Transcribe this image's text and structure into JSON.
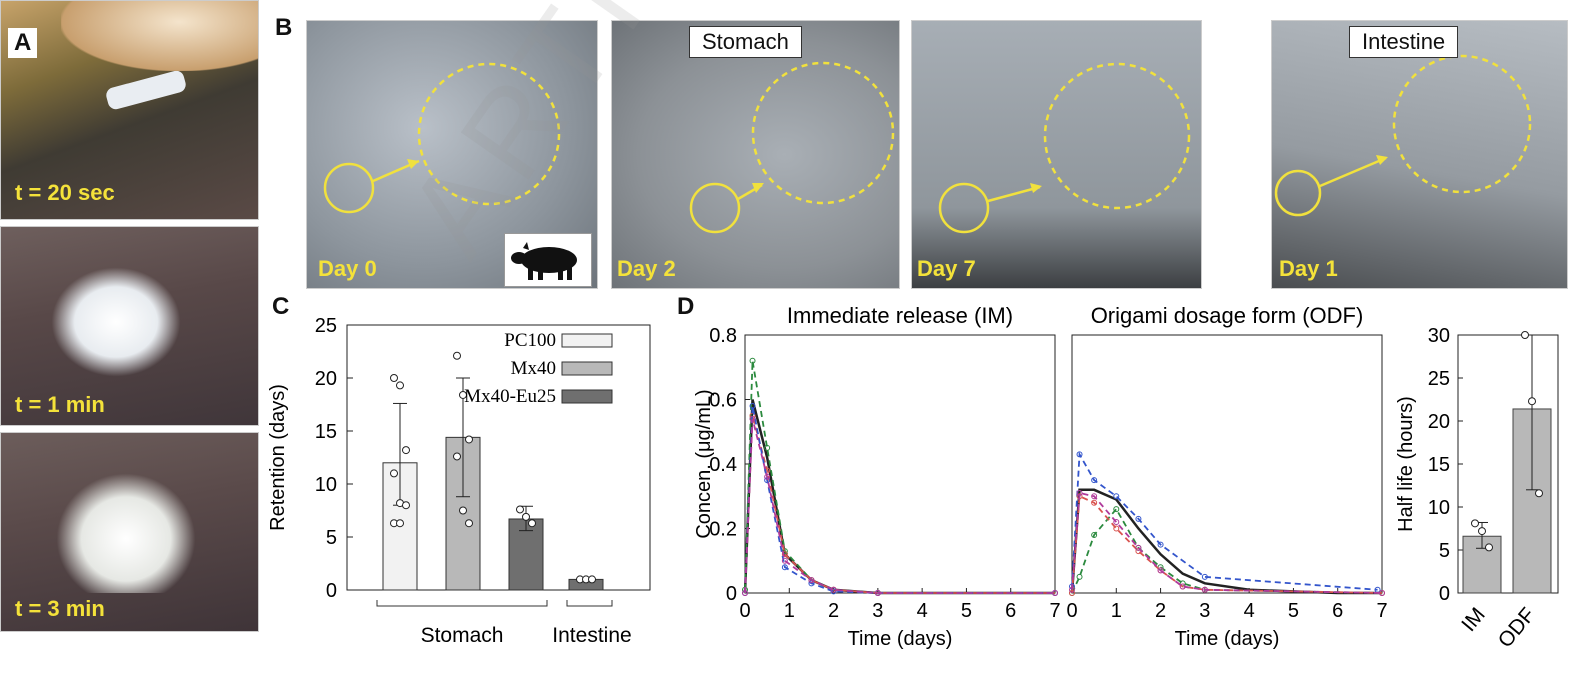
{
  "panelA": {
    "letter": "A",
    "frames": [
      {
        "label": "t = 20 sec"
      },
      {
        "label": "t = 1 min"
      },
      {
        "label": "t = 3 min"
      }
    ]
  },
  "panelB": {
    "letter": "B",
    "images": [
      {
        "day": "Day 0",
        "tag": ""
      },
      {
        "day": "Day 2",
        "tag": "Stomach"
      },
      {
        "day": "Day 7",
        "tag": ""
      },
      {
        "day": "Day 1",
        "tag": "Intestine"
      }
    ],
    "animal_icon": "pig-icon"
  },
  "panelC": {
    "letter": "C",
    "chart_data": {
      "type": "bar",
      "ylabel": "Retention (days)",
      "ylim": [
        0,
        25
      ],
      "yticks": [
        0,
        5,
        10,
        15,
        20,
        25
      ],
      "legend": [
        "PC100",
        "Mx40",
        "Mx40-Eu25"
      ],
      "legend_position": "top-right",
      "groups": [
        "Stomach",
        "Intestine"
      ],
      "bars": [
        {
          "series": "PC100",
          "group": "Stomach",
          "value": 12,
          "err_low": 8,
          "err_high": 17.6,
          "points": [
            20,
            19.3,
            13.2,
            11,
            8.2,
            8,
            6.3,
            6.3
          ]
        },
        {
          "series": "Mx40",
          "group": "Stomach",
          "value": 14.4,
          "err_low": 8.8,
          "err_high": 20,
          "points": [
            22.1,
            18.4,
            14.2,
            12.6,
            7.5,
            6.3
          ]
        },
        {
          "series": "Mx40-Eu25",
          "group": "Stomach",
          "value": 6.7,
          "err_low": 5.6,
          "err_high": 7.9,
          "points": [
            7.6,
            6.9,
            6.3
          ]
        },
        {
          "series": "Mx40-Eu25",
          "group": "Intestine",
          "value": 1,
          "err_low": 1,
          "err_high": 1,
          "points": [
            1,
            1,
            1
          ]
        }
      ]
    }
  },
  "panelD": {
    "letter": "D",
    "chart_data": [
      {
        "type": "line",
        "title": "Immediate release (IM)",
        "xlabel": "Time (days)",
        "ylabel": "Concen. (μg/mL)",
        "xlim": [
          0,
          7
        ],
        "ylim": [
          0,
          0.8
        ],
        "xticks": [
          0,
          1,
          2,
          3,
          4,
          5,
          6,
          7
        ],
        "yticks": [
          0,
          0.2,
          0.4,
          0.6,
          0.8
        ],
        "series": [
          {
            "color": "#222222",
            "style": "solid",
            "x": [
              0,
              0.17,
              0.5,
              0.9,
              1.5,
              2,
              3,
              4,
              5,
              6,
              7
            ],
            "y": [
              0,
              0.6,
              0.42,
              0.12,
              0.04,
              0.01,
              0,
              0,
              0,
              0,
              0
            ]
          },
          {
            "color": "#2b8a3e",
            "style": "dashed",
            "x": [
              0,
              0.17,
              0.5,
              0.9,
              1.5,
              2,
              3,
              7
            ],
            "y": [
              0.01,
              0.72,
              0.45,
              0.13,
              0.04,
              0.01,
              0,
              0
            ]
          },
          {
            "color": "#d9534f",
            "style": "dashed",
            "x": [
              0,
              0.17,
              0.5,
              0.9,
              1.5,
              2,
              3,
              7
            ],
            "y": [
              0,
              0.55,
              0.38,
              0.12,
              0.04,
              0.01,
              0,
              0
            ]
          },
          {
            "color": "#3355cc",
            "style": "dashed",
            "x": [
              0,
              0.17,
              0.5,
              0.9,
              1.5,
              2,
              3,
              7
            ],
            "y": [
              0,
              0.58,
              0.35,
              0.08,
              0.03,
              0.005,
              0,
              0
            ]
          },
          {
            "color": "#b03a9b",
            "style": "dashed",
            "x": [
              0,
              0.17,
              0.5,
              0.9,
              1.5,
              2,
              3,
              7
            ],
            "y": [
              0,
              0.54,
              0.36,
              0.1,
              0.04,
              0.01,
              0,
              0
            ]
          }
        ]
      },
      {
        "type": "line",
        "title": "Origami dosage form (ODF)",
        "xlabel": "Time (days)",
        "xlim": [
          0,
          7
        ],
        "ylim": [
          0,
          0.8
        ],
        "xticks": [
          0,
          1,
          2,
          3,
          4,
          5,
          6,
          7
        ],
        "series": [
          {
            "color": "#222222",
            "style": "solid",
            "x": [
              0,
              0.17,
              0.5,
              1,
              1.5,
              2,
              2.5,
              3,
              4,
              5,
              6,
              7
            ],
            "y": [
              0,
              0.32,
              0.32,
              0.29,
              0.2,
              0.12,
              0.06,
              0.03,
              0.01,
              0.005,
              0,
              0
            ]
          },
          {
            "color": "#3355cc",
            "style": "dashed",
            "x": [
              0,
              0.17,
              0.5,
              1,
              1.5,
              2,
              3,
              6.9
            ],
            "y": [
              0.02,
              0.43,
              0.35,
              0.3,
              0.23,
              0.15,
              0.05,
              0.01
            ]
          },
          {
            "color": "#2b8a3e",
            "style": "dashed",
            "x": [
              0,
              0.17,
              0.5,
              1,
              1.5,
              2,
              2.5,
              3,
              7
            ],
            "y": [
              0,
              0.05,
              0.18,
              0.26,
              0.14,
              0.08,
              0.03,
              0.01,
              0
            ]
          },
          {
            "color": "#d9534f",
            "style": "dashed",
            "x": [
              0,
              0.17,
              0.5,
              1,
              1.5,
              2,
              2.5,
              3,
              7
            ],
            "y": [
              0,
              0.3,
              0.28,
              0.2,
              0.13,
              0.07,
              0.02,
              0.01,
              0
            ]
          },
          {
            "color": "#b03a9b",
            "style": "dashed",
            "x": [
              0,
              0.17,
              0.5,
              1,
              1.5,
              2,
              2.5,
              3,
              7
            ],
            "y": [
              0.01,
              0.31,
              0.3,
              0.22,
              0.14,
              0.07,
              0.02,
              0.01,
              0
            ]
          }
        ]
      },
      {
        "type": "bar",
        "ylabel": "Half life (hours)",
        "categories": [
          "IM",
          "ODF"
        ],
        "values": [
          6.6,
          21.4
        ],
        "err_low": [
          5.2,
          12
        ],
        "err_high": [
          8.2,
          30
        ],
        "points": [
          [
            8.1,
            7.2,
            5.3
          ],
          [
            30,
            22.3,
            11.6
          ]
        ],
        "ylim": [
          0,
          30
        ],
        "yticks": [
          0,
          5,
          10,
          15,
          20,
          25,
          30
        ]
      }
    ]
  }
}
